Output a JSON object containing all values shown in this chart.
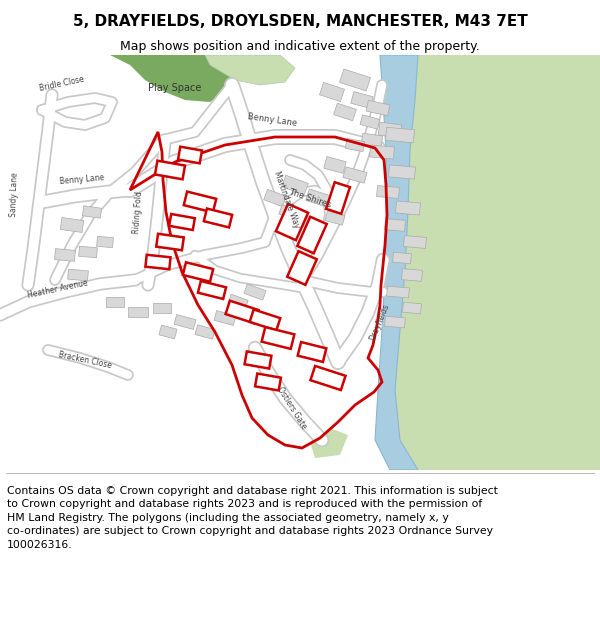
{
  "title": "5, DRAYFIELDS, DROYLSDEN, MANCHESTER, M43 7ET",
  "subtitle": "Map shows position and indicative extent of the property.",
  "footer": "Contains OS data © Crown copyright and database right 2021. This information is subject to Crown copyright and database rights 2023 and is reproduced with the permission of HM Land Registry. The polygons (including the associated geometry, namely x, y co-ordinates) are subject to Crown copyright and database rights 2023 Ordnance Survey 100026316.",
  "map_bg": "#f0f0f0",
  "road_color": "#ffffff",
  "road_outline": "#c8c8c8",
  "building_color": "#d8d8d8",
  "building_outline": "#aaaaaa",
  "green_light": "#c8ddb0",
  "green_dark": "#7aaa60",
  "water_color": "#a8cce0",
  "red_boundary": "#cc0000",
  "title_fontsize": 11,
  "subtitle_fontsize": 9,
  "footer_fontsize": 7.8
}
